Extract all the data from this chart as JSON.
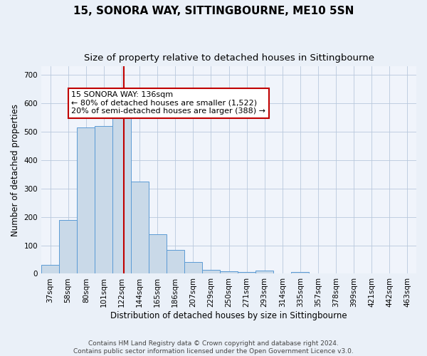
{
  "title": "15, SONORA WAY, SITTINGBOURNE, ME10 5SN",
  "subtitle": "Size of property relative to detached houses in Sittingbourne",
  "xlabel": "Distribution of detached houses by size in Sittingbourne",
  "ylabel": "Number of detached properties",
  "bin_labels": [
    "37sqm",
    "58sqm",
    "80sqm",
    "101sqm",
    "122sqm",
    "144sqm",
    "165sqm",
    "186sqm",
    "207sqm",
    "229sqm",
    "250sqm",
    "271sqm",
    "293sqm",
    "314sqm",
    "335sqm",
    "357sqm",
    "378sqm",
    "399sqm",
    "421sqm",
    "442sqm",
    "463sqm"
  ],
  "bar_heights": [
    30,
    190,
    515,
    520,
    565,
    325,
    138,
    85,
    42,
    13,
    8,
    5,
    10,
    0,
    5,
    0,
    0,
    0,
    0,
    0,
    0
  ],
  "bar_color": "#c9d9e8",
  "bar_edge_color": "#5b9bd5",
  "vline_color": "#c00000",
  "annotation_line1": "15 SONORA WAY: 136sqm",
  "annotation_line2": "← 80% of detached houses are smaller (1,522)",
  "annotation_line3": "20% of semi-detached houses are larger (388) →",
  "annotation_box_color": "white",
  "annotation_box_edge_color": "#c00000",
  "ylim": [
    0,
    730
  ],
  "yticks": [
    0,
    100,
    200,
    300,
    400,
    500,
    600,
    700
  ],
  "footer": "Contains HM Land Registry data © Crown copyright and database right 2024.\nContains public sector information licensed under the Open Government Licence v3.0.",
  "bg_color": "#eaf0f8",
  "plot_bg_color": "#f0f4fb",
  "title_fontsize": 11,
  "subtitle_fontsize": 9.5,
  "label_fontsize": 8.5,
  "tick_fontsize": 7.5,
  "footer_fontsize": 6.5
}
